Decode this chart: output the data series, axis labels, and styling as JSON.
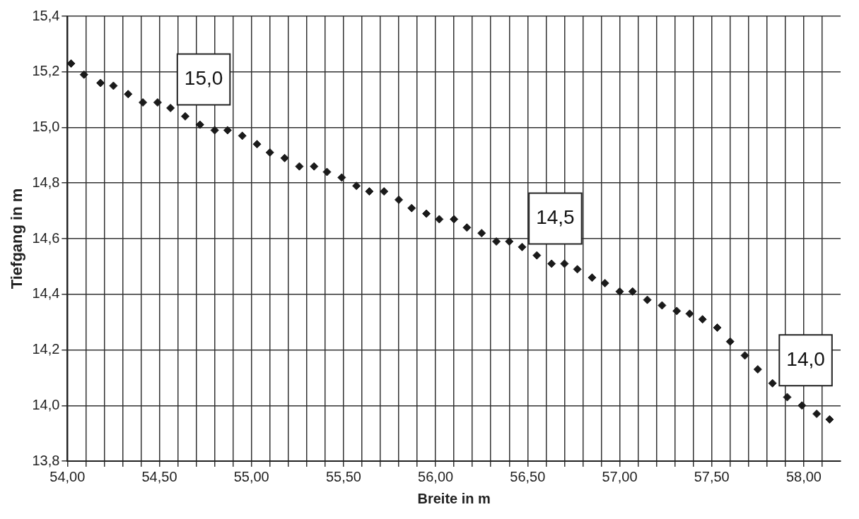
{
  "chart_data": {
    "type": "scatter",
    "xlabel": "Breite in m",
    "ylabel": "Tiefgang in m",
    "marker": "diamond",
    "grid": true,
    "legend": false,
    "xlim": [
      54,
      58.2
    ],
    "ylim": [
      13.8,
      15.4
    ],
    "xticks": [
      {
        "value": 54,
        "label": "54,00"
      },
      {
        "value": 54.1,
        "label": null
      },
      {
        "value": 54.2,
        "label": null
      },
      {
        "value": 54.3,
        "label": null
      },
      {
        "value": 54.4,
        "label": null
      },
      {
        "value": 54.5,
        "label": "54,50"
      },
      {
        "value": 54.6,
        "label": null
      },
      {
        "value": 54.7,
        "label": null
      },
      {
        "value": 54.8,
        "label": null
      },
      {
        "value": 54.9,
        "label": null
      },
      {
        "value": 55,
        "label": "55,00"
      },
      {
        "value": 55.1,
        "label": null
      },
      {
        "value": 55.2,
        "label": null
      },
      {
        "value": 55.3,
        "label": null
      },
      {
        "value": 55.4,
        "label": null
      },
      {
        "value": 55.5,
        "label": "55,50"
      },
      {
        "value": 55.6,
        "label": null
      },
      {
        "value": 55.7,
        "label": null
      },
      {
        "value": 55.8,
        "label": null
      },
      {
        "value": 55.9,
        "label": null
      },
      {
        "value": 56,
        "label": "56,00"
      },
      {
        "value": 56.1,
        "label": null
      },
      {
        "value": 56.2,
        "label": null
      },
      {
        "value": 56.3,
        "label": null
      },
      {
        "value": 56.4,
        "label": null
      },
      {
        "value": 56.5,
        "label": "56,50"
      },
      {
        "value": 56.6,
        "label": null
      },
      {
        "value": 56.7,
        "label": null
      },
      {
        "value": 56.8,
        "label": null
      },
      {
        "value": 56.9,
        "label": null
      },
      {
        "value": 57,
        "label": "57,00"
      },
      {
        "value": 57.1,
        "label": null
      },
      {
        "value": 57.2,
        "label": null
      },
      {
        "value": 57.3,
        "label": null
      },
      {
        "value": 57.4,
        "label": null
      },
      {
        "value": 57.5,
        "label": "57,50"
      },
      {
        "value": 57.6,
        "label": null
      },
      {
        "value": 57.7,
        "label": null
      },
      {
        "value": 57.8,
        "label": null
      },
      {
        "value": 57.9,
        "label": null
      },
      {
        "value": 58,
        "label": "58,00"
      },
      {
        "value": 58.1,
        "label": null
      }
    ],
    "yticks": [
      {
        "value": 13.8,
        "label": "13,8"
      },
      {
        "value": 14,
        "label": "14,0"
      },
      {
        "value": 14.2,
        "label": "14,2"
      },
      {
        "value": 14.4,
        "label": "14,4"
      },
      {
        "value": 14.6,
        "label": "14,6"
      },
      {
        "value": 14.8,
        "label": "14,8"
      },
      {
        "value": 15,
        "label": "15,0"
      },
      {
        "value": 15.2,
        "label": "15,2"
      },
      {
        "value": 15.4,
        "label": "15,4"
      }
    ],
    "x": [
      54.02,
      54.09,
      54.18,
      54.25,
      54.33,
      54.41,
      54.49,
      54.56,
      54.64,
      54.72,
      54.8,
      54.87,
      54.95,
      55.03,
      55.1,
      55.18,
      55.26,
      55.34,
      55.41,
      55.49,
      55.57,
      55.64,
      55.72,
      55.8,
      55.87,
      55.95,
      56.02,
      56.1,
      56.17,
      56.25,
      56.33,
      56.4,
      56.47,
      56.55,
      56.63,
      56.7,
      56.77,
      56.85,
      56.92,
      57,
      57.07,
      57.15,
      57.23,
      57.31,
      57.38,
      57.45,
      57.53,
      57.6,
      57.68,
      57.75,
      57.83,
      57.91,
      57.99,
      58.07,
      58.14
    ],
    "series": [
      {
        "color": "#1a1a1a",
        "values": [
          15.23,
          15.19,
          15.16,
          15.15,
          15.12,
          15.09,
          15.09,
          15.07,
          15.04,
          15.01,
          14.99,
          14.99,
          14.97,
          14.94,
          14.91,
          14.89,
          14.86,
          14.86,
          14.84,
          14.82,
          14.79,
          14.77,
          14.77,
          14.74,
          14.71,
          14.69,
          14.67,
          14.67,
          14.64,
          14.62,
          14.59,
          14.59,
          14.57,
          14.54,
          14.51,
          14.51,
          14.49,
          14.46,
          14.44,
          14.41,
          14.41,
          14.38,
          14.36,
          14.34,
          14.33,
          14.31,
          14.28,
          14.23,
          14.18,
          14.13,
          14.08,
          14.03,
          14,
          13.97,
          13.95
        ]
      }
    ],
    "annotations": [
      {
        "text": "15,0",
        "x": 54.72,
        "y": 15.01
      },
      {
        "text": "14,5",
        "x": 56.63,
        "y": 14.51
      },
      {
        "text": "14,0",
        "x": 57.99,
        "y": 14.0
      }
    ]
  }
}
